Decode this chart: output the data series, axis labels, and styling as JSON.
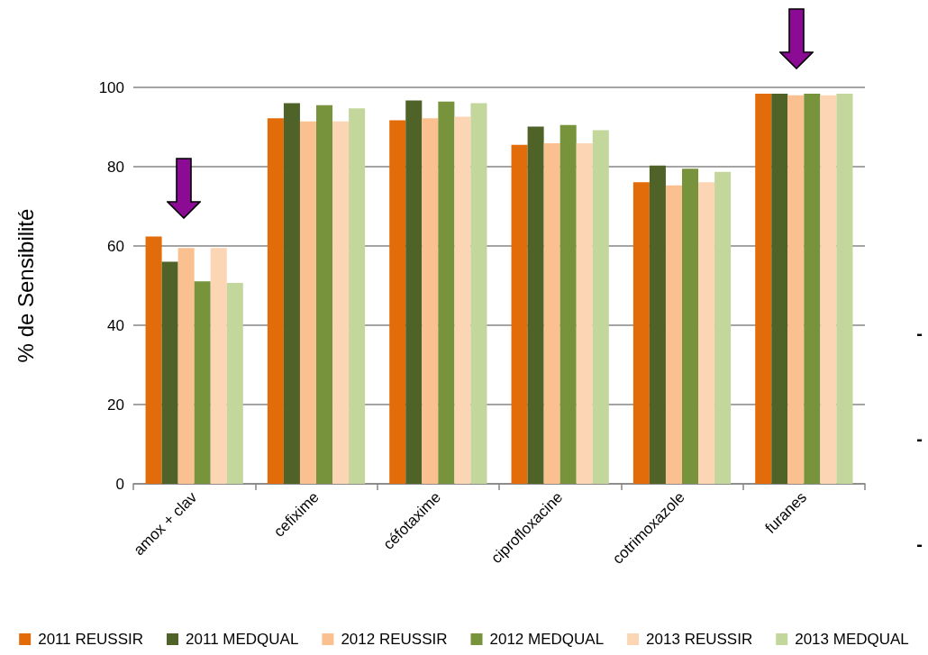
{
  "chart_data": {
    "type": "bar",
    "ylabel": "% de Sensibilité",
    "categories": [
      "amox + clav",
      "cefixime",
      "céfotaxime",
      "ciprofloxacine",
      "cotrimoxazole",
      "furanes"
    ],
    "series": [
      {
        "name": "2011 REUSSIR",
        "color": "#e36c0a",
        "values": [
          62.4,
          92.2,
          91.7,
          85.5,
          76.1,
          98.4
        ]
      },
      {
        "name": "2011 MEDQUAL",
        "color": "#4f6228",
        "values": [
          56.0,
          96.0,
          96.7,
          90.1,
          80.3,
          98.4
        ]
      },
      {
        "name": "2012 REUSSIR",
        "color": "#fac090",
        "values": [
          59.5,
          91.4,
          92.2,
          85.9,
          75.3,
          98.0
        ]
      },
      {
        "name": "2012 MEDQUAL",
        "color": "#77933c",
        "values": [
          51.1,
          95.5,
          96.4,
          90.5,
          79.5,
          98.4
        ]
      },
      {
        "name": "2013 REUSSIR",
        "color": "#fcd5b5",
        "values": [
          59.5,
          91.4,
          92.6,
          85.9,
          76.1,
          98.0
        ]
      },
      {
        "name": "2013 MEDQUAL",
        "color": "#c3d69b",
        "values": [
          50.7,
          94.7,
          96.0,
          89.2,
          78.7,
          98.4
        ]
      }
    ],
    "ylim": [
      0,
      100
    ],
    "yticks": [
      0,
      20,
      40,
      60,
      80,
      100
    ],
    "grid": "y",
    "legend": "bottom",
    "annotations": [
      "-",
      "-",
      "-"
    ]
  }
}
